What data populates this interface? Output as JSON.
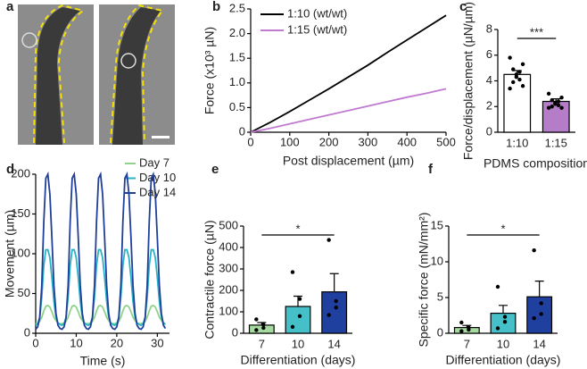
{
  "image_panel": {
    "label": "a"
  },
  "chart_data": [
    {
      "type": "line",
      "label": "b",
      "xlabel": "Post displacement (µm)",
      "ylabel": "Force (x10³ µN)",
      "x": [
        0,
        50,
        100,
        150,
        200,
        250,
        300,
        350,
        400,
        450,
        500
      ],
      "series": [
        {
          "name": "1:10 (wt/wt)",
          "color": "#000000",
          "values": [
            0,
            0.2,
            0.42,
            0.65,
            0.88,
            1.12,
            1.36,
            1.62,
            1.87,
            2.12,
            2.37
          ]
        },
        {
          "name": "1:15 (wt/wt)",
          "color": "#c07ad0",
          "values": [
            0,
            0.08,
            0.17,
            0.26,
            0.35,
            0.44,
            0.53,
            0.62,
            0.71,
            0.79,
            0.88
          ]
        }
      ],
      "xlim": [
        0,
        500
      ],
      "xticks": [
        0,
        100,
        200,
        300,
        400,
        500
      ],
      "ylim": [
        0,
        2.5
      ],
      "yticks": [
        0,
        0.5,
        {
          "value": 1,
          "label": "1.0"
        },
        1.5,
        {
          "value": 2,
          "label": "2.0"
        },
        2.5
      ],
      "legend": "upper left"
    },
    {
      "type": "bar",
      "label": "c",
      "xlabel": "PDMS composition",
      "ylabel": "Force/displacement (µN/µm)",
      "categories": [
        "1:10",
        "1:15"
      ],
      "values": [
        4.5,
        2.4
      ],
      "errors": [
        0.3,
        0.2
      ],
      "colors": [
        "#ffffff",
        "#b57dc8"
      ],
      "points": [
        [
          5.8,
          5.3,
          4.9,
          4.7,
          4.5,
          4.3,
          4.1,
          3.9,
          3.6,
          3.4
        ],
        [
          3.0,
          2.7,
          2.5,
          2.4,
          2.3,
          2.2,
          2.1,
          2.0,
          1.9,
          1.9
        ]
      ],
      "annotation": "***",
      "ylim": [
        0,
        8
      ],
      "yticks": [
        0,
        2,
        4,
        6,
        8
      ]
    },
    {
      "type": "line",
      "label": "d",
      "xlabel": "Time (s)",
      "ylabel": "Movement (µm)",
      "x": [
        0,
        0.5,
        1,
        1.5,
        2,
        2.5,
        3,
        3.5,
        4,
        4.5,
        5,
        5.5,
        6,
        6.5,
        7,
        7.5,
        8,
        8.5,
        9,
        9.5,
        10,
        10.5,
        11,
        11.5,
        12,
        12.5,
        13,
        13.5,
        14,
        14.5,
        15,
        15.5,
        16,
        16.5,
        17,
        17.5,
        18,
        18.5,
        19,
        19.5,
        20,
        20.5,
        21,
        21.5,
        22,
        22.5,
        23,
        23.5,
        24,
        24.5,
        25,
        25.5,
        26,
        26.5,
        27,
        27.5,
        28,
        28.5,
        29,
        29.5,
        30,
        30.5,
        31,
        31.5,
        32
      ],
      "series": [
        {
          "name": "Day 7",
          "color": "#8fd38a",
          "values": [
            12,
            13,
            15,
            20,
            28,
            34,
            35,
            33,
            27,
            20,
            16,
            13,
            12,
            12,
            13,
            15,
            20,
            28,
            34,
            35,
            33,
            27,
            20,
            16,
            13,
            12,
            12,
            13,
            15,
            20,
            28,
            34,
            35,
            33,
            27,
            20,
            16,
            13,
            12,
            12,
            13,
            15,
            20,
            28,
            34,
            35,
            33,
            27,
            20,
            16,
            13,
            12,
            12,
            13,
            15,
            20,
            28,
            34,
            35,
            33,
            27,
            20,
            16,
            13,
            12
          ]
        },
        {
          "name": "Day 10",
          "color": "#29b3c7",
          "values": [
            10,
            12,
            20,
            45,
            85,
            105,
            105,
            95,
            70,
            40,
            20,
            13,
            11,
            10,
            12,
            20,
            45,
            85,
            105,
            105,
            95,
            70,
            40,
            20,
            13,
            11,
            10,
            12,
            20,
            45,
            85,
            105,
            105,
            95,
            70,
            40,
            20,
            13,
            11,
            10,
            12,
            20,
            45,
            85,
            105,
            105,
            95,
            70,
            40,
            20,
            13,
            11,
            10,
            12,
            20,
            45,
            85,
            105,
            105,
            95,
            70,
            40,
            20,
            13,
            11
          ]
        },
        {
          "name": "Day 14",
          "color": "#1f3f99",
          "values": [
            5,
            8,
            20,
            60,
            140,
            195,
            200,
            175,
            120,
            60,
            25,
            10,
            6,
            5,
            8,
            20,
            60,
            140,
            195,
            200,
            175,
            120,
            60,
            25,
            10,
            6,
            5,
            8,
            20,
            60,
            140,
            195,
            200,
            175,
            120,
            60,
            25,
            10,
            6,
            5,
            8,
            20,
            60,
            140,
            195,
            200,
            175,
            120,
            60,
            25,
            10,
            6,
            5,
            8,
            20,
            60,
            140,
            195,
            200,
            175,
            120,
            60,
            25,
            10,
            6
          ]
        }
      ],
      "xlim": [
        0,
        33
      ],
      "xticks": [
        0,
        10,
        20,
        30
      ],
      "ylim": [
        0,
        200
      ],
      "yticks": [
        0,
        50,
        100,
        150,
        200
      ],
      "legend": "upper right"
    },
    {
      "type": "bar",
      "label": "e",
      "xlabel": "Differentiation (days)",
      "ylabel": "Contractile force (µN)",
      "categories": [
        "7",
        "10",
        "14"
      ],
      "values": [
        38,
        125,
        193
      ],
      "errors": [
        12,
        48,
        85
      ],
      "colors": [
        "#a6dba0",
        "#45c0c8",
        "#2040a0"
      ],
      "points": [
        [
          15,
          25,
          40,
          65
        ],
        [
          30,
          80,
          160,
          285
        ],
        [
          85,
          120,
          150,
          435
        ]
      ],
      "annotation": "*",
      "ylim": [
        0,
        500
      ],
      "yticks": [
        0,
        100,
        200,
        300,
        400,
        500
      ]
    },
    {
      "type": "bar",
      "label": "f",
      "xlabel": "Differentiation (days)",
      "ylabel": "Specific force (mN/mm²)",
      "categories": [
        "7",
        "10",
        "14"
      ],
      "values": [
        0.8,
        2.8,
        5.1
      ],
      "errors": [
        0.3,
        1.1,
        2.2
      ],
      "colors": [
        "#a6dba0",
        "#45c0c8",
        "#2040a0"
      ],
      "points": [
        [
          0.3,
          0.5,
          0.8,
          1.5
        ],
        [
          0.7,
          1.6,
          2.3,
          6.5
        ],
        [
          2.1,
          2.7,
          4.2,
          11.6
        ]
      ],
      "annotation": "*",
      "ylim": [
        0,
        15
      ],
      "yticks": [
        0,
        5,
        10,
        15
      ]
    }
  ]
}
